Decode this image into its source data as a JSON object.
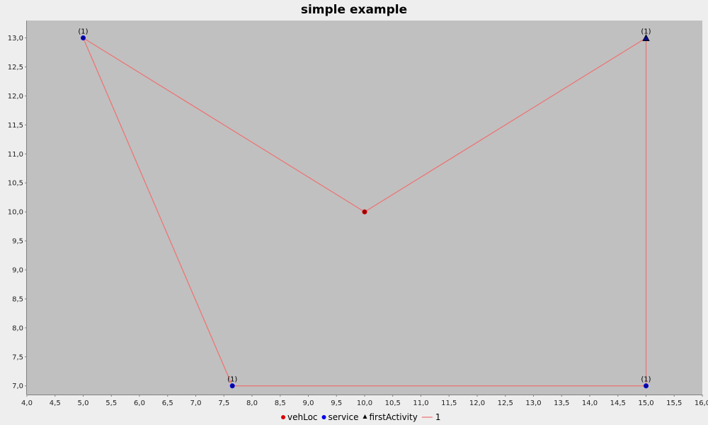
{
  "chart_data": {
    "type": "scatter",
    "title": "simple example",
    "xlabel": "",
    "ylabel": "",
    "xlim": [
      4.0,
      16.0
    ],
    "ylim": [
      6.85,
      13.3
    ],
    "x_ticks": [
      "4,0",
      "4,5",
      "5,0",
      "5,5",
      "6,0",
      "6,5",
      "7,0",
      "7,5",
      "8,0",
      "8,5",
      "9,0",
      "9,5",
      "10,0",
      "10,5",
      "11,0",
      "11,5",
      "12,0",
      "12,5",
      "13,0",
      "13,5",
      "14,0",
      "14,5",
      "15,0",
      "15,5",
      "16,0"
    ],
    "x_tick_values": [
      4.0,
      4.5,
      5.0,
      5.5,
      6.0,
      6.5,
      7.0,
      7.5,
      8.0,
      8.5,
      9.0,
      9.5,
      10.0,
      10.5,
      11.0,
      11.5,
      12.0,
      12.5,
      13.0,
      13.5,
      14.0,
      14.5,
      15.0,
      15.5,
      16.0
    ],
    "y_ticks": [
      "7,0",
      "7,5",
      "8,0",
      "8,5",
      "9,0",
      "9,5",
      "10,0",
      "10,5",
      "11,0",
      "11,5",
      "12,0",
      "12,5",
      "13,0"
    ],
    "y_tick_values": [
      7.0,
      7.5,
      8.0,
      8.5,
      9.0,
      9.5,
      10.0,
      10.5,
      11.0,
      11.5,
      12.0,
      12.5,
      13.0
    ],
    "grid": false,
    "legend_position": "bottom",
    "plot_background": "#c0c0c0",
    "series": [
      {
        "name": "vehLoc",
        "marker": "circle",
        "color": "#cc0000",
        "fill": "#990000",
        "points": [
          {
            "x": 10.0,
            "y": 10.0
          }
        ]
      },
      {
        "name": "service",
        "marker": "circle",
        "color": "#0000ee",
        "fill": "#0a0a8a",
        "points": [
          {
            "x": 5.0,
            "y": 13.0,
            "label": "(1)"
          },
          {
            "x": 7.65,
            "y": 7.0,
            "label": "(1)"
          },
          {
            "x": 15.0,
            "y": 7.0,
            "label": "(1)"
          }
        ]
      },
      {
        "name": "firstActivity",
        "marker": "triangle",
        "color": "#000000",
        "fill": "#0a0a8a",
        "points": [
          {
            "x": 15.0,
            "y": 13.0,
            "label": "(1)"
          }
        ]
      },
      {
        "name": "1",
        "marker": "line",
        "color": "#f07070",
        "points": [
          {
            "x": 10.0,
            "y": 10.0
          },
          {
            "x": 15.0,
            "y": 13.0
          },
          {
            "x": 15.0,
            "y": 7.0
          },
          {
            "x": 7.65,
            "y": 7.0
          },
          {
            "x": 5.0,
            "y": 13.0
          },
          {
            "x": 10.0,
            "y": 10.0
          }
        ]
      }
    ]
  }
}
